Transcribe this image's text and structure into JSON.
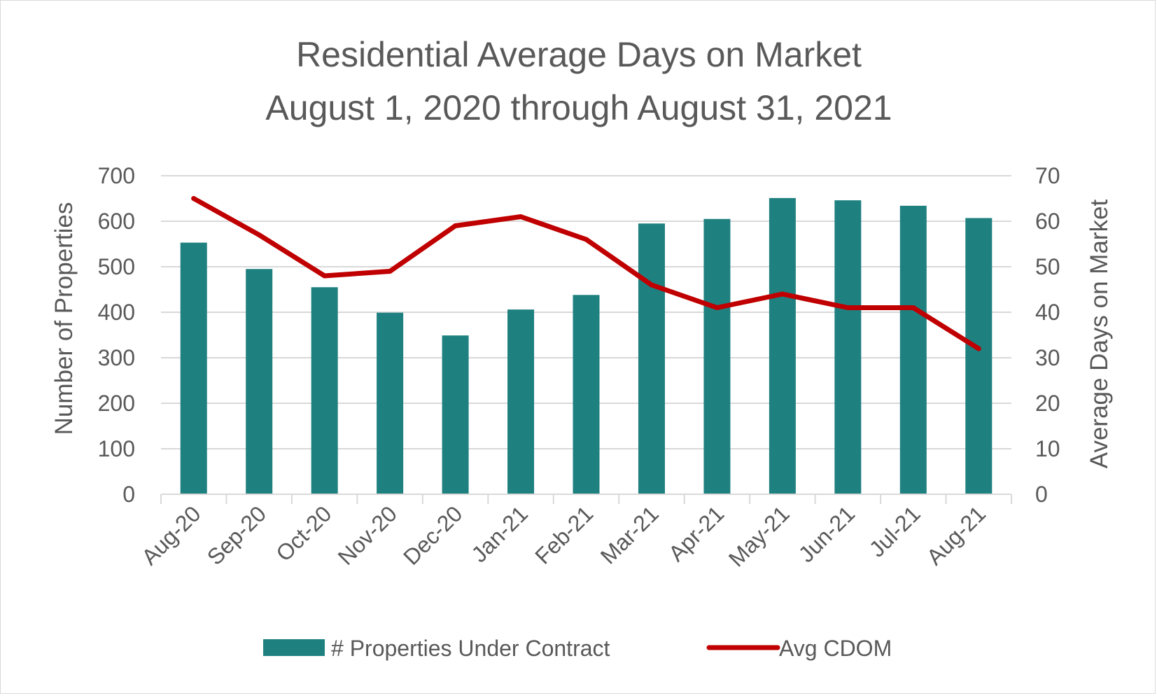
{
  "chart_data": {
    "type": "bar",
    "title": [
      "Residential Average Days on Market",
      "August 1, 2020 through August 31, 2021"
    ],
    "categories": [
      "Aug-20",
      "Sep-20",
      "Oct-20",
      "Nov-20",
      "Dec-20",
      "Jan-21",
      "Feb-21",
      "Mar-21",
      "Apr-21",
      "May-21",
      "Jun-21",
      "Jul-21",
      "Aug-21"
    ],
    "series": [
      {
        "name": "# Properties Under Contract",
        "type": "bar",
        "axis": "left",
        "color": "#1f8080",
        "values": [
          553,
          495,
          455,
          399,
          349,
          406,
          438,
          595,
          605,
          651,
          646,
          634,
          607
        ]
      },
      {
        "name": "Avg CDOM",
        "type": "line",
        "axis": "right",
        "color": "#c00000",
        "values": [
          65,
          57,
          48,
          49,
          59,
          61,
          56,
          46,
          41,
          44,
          41,
          41,
          32
        ]
      }
    ],
    "ylabel": "Number of Properties",
    "y2label": "Average Days on Market",
    "ylim": [
      0,
      700
    ],
    "y2lim": [
      0,
      70
    ],
    "yticks": [
      "0",
      "100",
      "200",
      "300",
      "400",
      "500",
      "600",
      "700"
    ],
    "y2ticks": [
      "0",
      "10",
      "20",
      "30",
      "40",
      "50",
      "60",
      "70"
    ],
    "grid": true,
    "legend_position": "bottom"
  }
}
